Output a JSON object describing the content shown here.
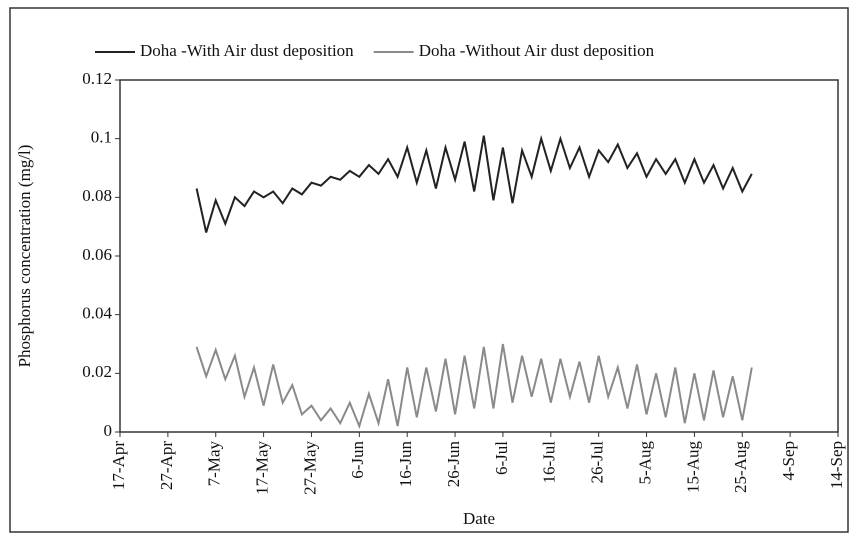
{
  "chart_data": {
    "type": "line",
    "xlabel": "Date",
    "ylabel": "Phosphorus concentration (mg/l)",
    "x": [
      "3-May",
      "5-May",
      "7-May",
      "9-May",
      "11-May",
      "13-May",
      "15-May",
      "17-May",
      "19-May",
      "21-May",
      "23-May",
      "25-May",
      "27-May",
      "29-May",
      "31-May",
      "2-Jun",
      "4-Jun",
      "6-Jun",
      "8-Jun",
      "10-Jun",
      "12-Jun",
      "14-Jun",
      "16-Jun",
      "18-Jun",
      "20-Jun",
      "22-Jun",
      "24-Jun",
      "26-Jun",
      "28-Jun",
      "30-Jun",
      "2-Jul",
      "4-Jul",
      "6-Jul",
      "8-Jul",
      "10-Jul",
      "12-Jul",
      "14-Jul",
      "16-Jul",
      "18-Jul",
      "20-Jul",
      "22-Jul",
      "24-Jul",
      "26-Jul",
      "28-Jul",
      "30-Jul",
      "1-Aug",
      "3-Aug",
      "5-Aug",
      "7-Aug",
      "9-Aug",
      "11-Aug",
      "13-Aug",
      "15-Aug",
      "17-Aug",
      "19-Aug",
      "21-Aug",
      "23-Aug",
      "25-Aug",
      "27-Aug"
    ],
    "series": [
      {
        "name": "Doha -With Air dust deposition",
        "color": "#222222",
        "values": [
          0.083,
          0.068,
          0.079,
          0.071,
          0.08,
          0.077,
          0.082,
          0.08,
          0.082,
          0.078,
          0.083,
          0.081,
          0.085,
          0.084,
          0.087,
          0.086,
          0.089,
          0.087,
          0.091,
          0.088,
          0.093,
          0.087,
          0.097,
          0.085,
          0.096,
          0.083,
          0.097,
          0.086,
          0.099,
          0.082,
          0.101,
          0.079,
          0.097,
          0.078,
          0.096,
          0.087,
          0.1,
          0.089,
          0.1,
          0.09,
          0.097,
          0.087,
          0.096,
          0.092,
          0.098,
          0.09,
          0.095,
          0.087,
          0.093,
          0.088,
          0.093,
          0.085,
          0.093,
          0.085,
          0.091,
          0.083,
          0.09,
          0.082,
          0.088
        ]
      },
      {
        "name": "Doha -Without Air dust deposition",
        "color": "#8a8a8a",
        "values": [
          0.029,
          0.019,
          0.028,
          0.018,
          0.026,
          0.012,
          0.022,
          0.009,
          0.023,
          0.01,
          0.016,
          0.006,
          0.009,
          0.004,
          0.008,
          0.003,
          0.01,
          0.002,
          0.013,
          0.003,
          0.018,
          0.002,
          0.022,
          0.005,
          0.022,
          0.007,
          0.025,
          0.006,
          0.026,
          0.008,
          0.029,
          0.008,
          0.03,
          0.01,
          0.026,
          0.012,
          0.025,
          0.01,
          0.025,
          0.012,
          0.024,
          0.01,
          0.026,
          0.012,
          0.022,
          0.008,
          0.023,
          0.006,
          0.02,
          0.005,
          0.022,
          0.003,
          0.02,
          0.004,
          0.021,
          0.005,
          0.019,
          0.004,
          0.022
        ]
      }
    ],
    "xlim": [
      "17-Apr",
      "14-Sep"
    ],
    "xticks": [
      "17-Apr",
      "27-Apr",
      "7-May",
      "17-May",
      "27-May",
      "6-Jun",
      "16-Jun",
      "26-Jun",
      "6-Jul",
      "16-Jul",
      "26-Jul",
      "5-Aug",
      "15-Aug",
      "25-Aug",
      "4-Sep",
      "14-Sep"
    ],
    "ylim": [
      0,
      0.12
    ],
    "yticks": [
      0,
      0.02,
      0.04,
      0.06,
      0.08,
      0.1,
      0.12
    ],
    "grid": false,
    "legend": "top"
  }
}
